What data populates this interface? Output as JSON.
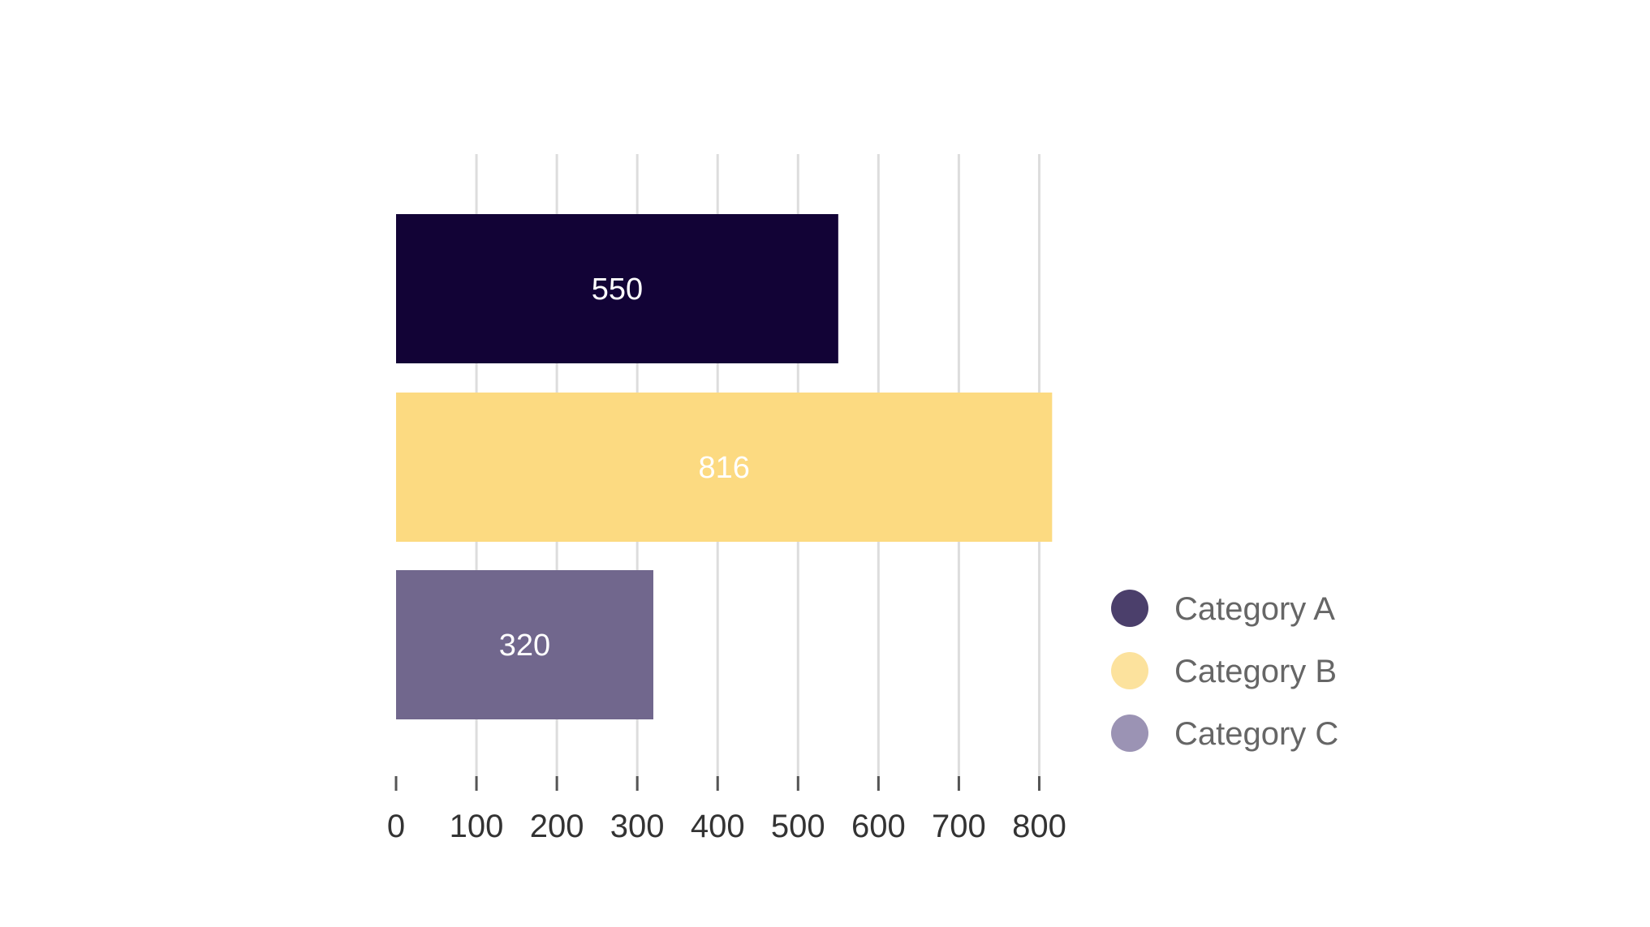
{
  "chart_data": {
    "type": "bar",
    "orientation": "horizontal",
    "categories": [
      "Category A",
      "Category B",
      "Category C"
    ],
    "values": [
      550,
      816,
      320
    ],
    "data_labels": [
      "550",
      "816",
      "320"
    ],
    "colors": [
      "#120336",
      "#fcda81",
      "#71678d"
    ],
    "data_label_colors": [
      "#ffffff",
      "#ffffff",
      "#ffffff"
    ],
    "legend": {
      "position": "right-bottom",
      "entries": [
        {
          "label": "Category A",
          "color": "#4b3f6b"
        },
        {
          "label": "Category B",
          "color": "#fce29d"
        },
        {
          "label": "Category C",
          "color": "#9b93b4"
        }
      ]
    },
    "x_ticks": [
      0,
      100,
      200,
      300,
      400,
      500,
      600,
      700,
      800
    ],
    "x_tick_labels": [
      "0",
      "100",
      "200",
      "300",
      "400",
      "500",
      "600",
      "700",
      "800"
    ],
    "xlim": [
      0,
      816
    ],
    "grid": true,
    "grid_color": "#dddddd",
    "tick_color": "#555555"
  }
}
